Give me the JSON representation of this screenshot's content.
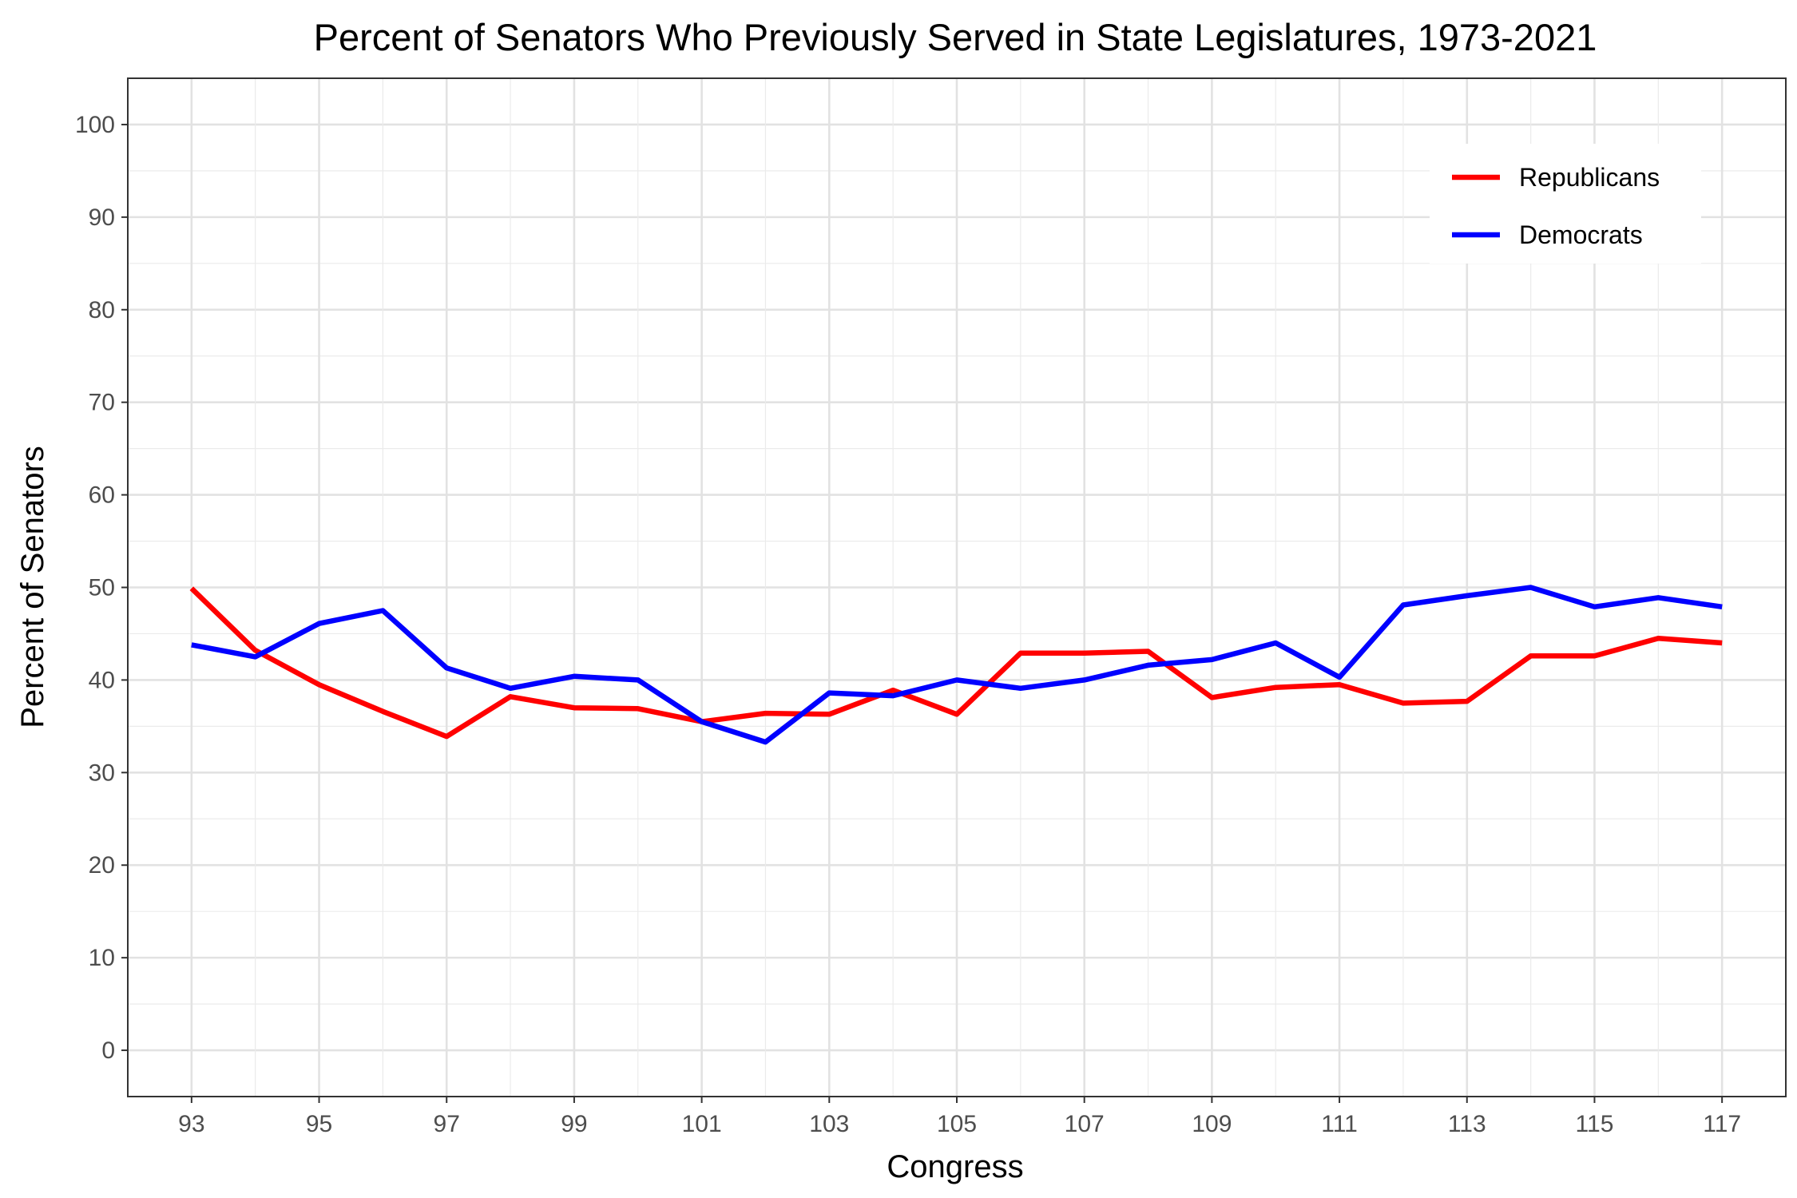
{
  "chart_data": {
    "type": "line",
    "title": "Percent of Senators Who Previously Served in State Legislatures, 1973-2021",
    "xlabel": "Congress",
    "ylabel": "Percent of Senators",
    "x": [
      93,
      94,
      95,
      96,
      97,
      98,
      99,
      100,
      101,
      102,
      103,
      104,
      105,
      106,
      107,
      108,
      109,
      110,
      111,
      112,
      113,
      114,
      115,
      116,
      117
    ],
    "xlim": [
      92,
      118
    ],
    "ylim": [
      -5,
      105
    ],
    "x_ticks": [
      "93",
      "95",
      "97",
      "99",
      "101",
      "103",
      "105",
      "107",
      "109",
      "111",
      "113",
      "115",
      "117"
    ],
    "y_ticks": [
      "0",
      "10",
      "20",
      "30",
      "40",
      "50",
      "60",
      "70",
      "80",
      "90",
      "100"
    ],
    "grid": true,
    "legend_position": "top-right",
    "series": [
      {
        "name": "Republicans",
        "color": "#ff0000",
        "values": [
          49.9,
          43.2,
          39.5,
          36.6,
          33.9,
          38.2,
          37.0,
          36.9,
          35.5,
          36.4,
          36.3,
          38.9,
          36.3,
          42.9,
          42.9,
          43.1,
          38.1,
          39.2,
          39.5,
          37.5,
          37.7,
          42.6,
          42.6,
          44.5,
          44.0
        ]
      },
      {
        "name": "Democrats",
        "color": "#0000ff",
        "values": [
          43.8,
          42.5,
          46.1,
          47.5,
          41.3,
          39.1,
          40.4,
          40.0,
          35.5,
          33.3,
          38.6,
          38.3,
          40.0,
          39.1,
          40.0,
          41.6,
          42.2,
          44.0,
          40.3,
          48.1,
          49.1,
          50.0,
          47.9,
          48.9,
          47.9
        ]
      }
    ]
  }
}
